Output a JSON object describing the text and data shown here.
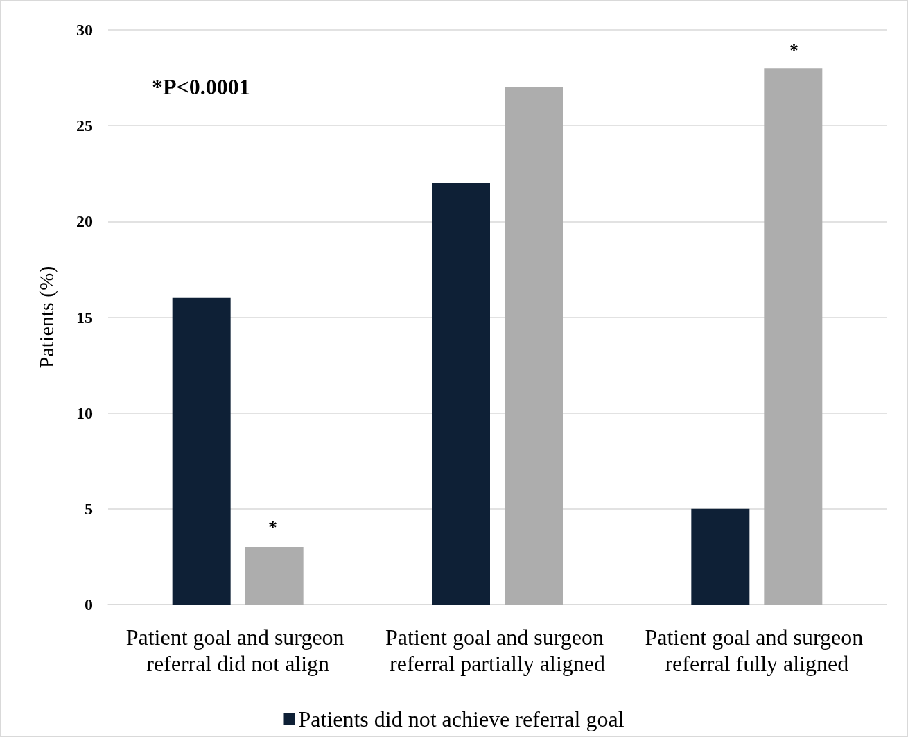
{
  "chart_data": {
    "type": "bar",
    "categories": [
      "Patient goal and surgeon referral did not align",
      "Patient goal and surgeon referral partially aligned",
      "Patient goal and surgeon referral fully aligned"
    ],
    "series": [
      {
        "name": "Patients did not achieve referral goal",
        "color": "#0e2036",
        "values": [
          16,
          22,
          5
        ]
      },
      {
        "color": "#adadad",
        "values": [
          3,
          27,
          28
        ]
      }
    ],
    "ylabel": "Patients (%)",
    "ylim": [
      0,
      30
    ],
    "yticks": [
      0,
      5,
      10,
      15,
      20,
      25,
      30
    ],
    "grid": "y",
    "legend": "bottom",
    "annotations": [
      "*P<0.0001",
      "*",
      "*"
    ]
  }
}
